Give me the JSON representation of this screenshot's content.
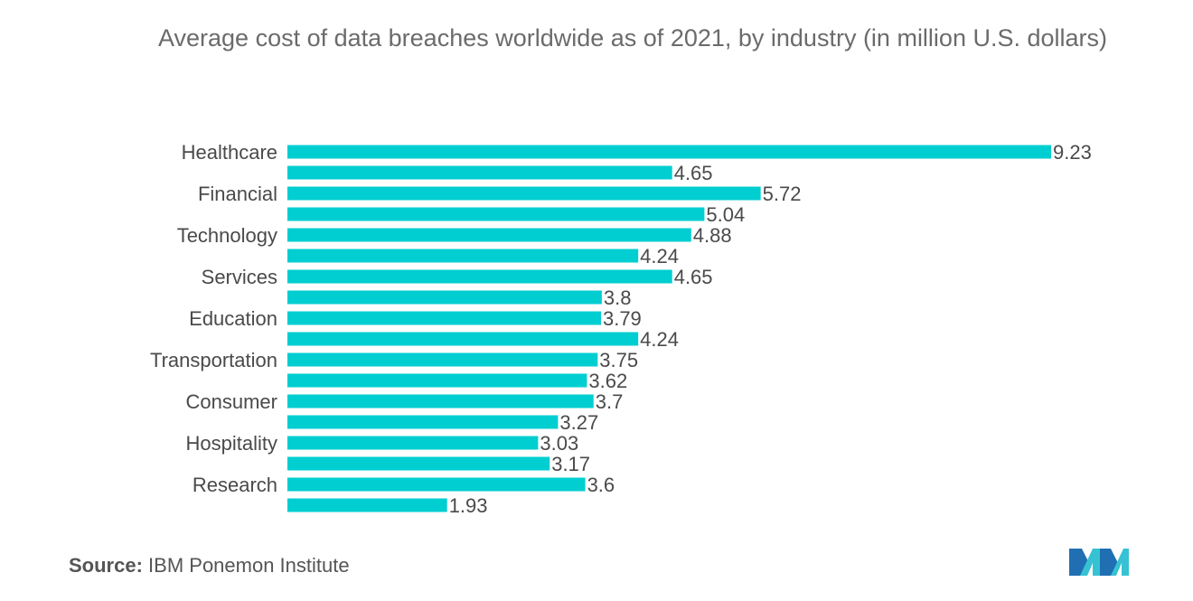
{
  "chart_data": {
    "type": "bar",
    "orientation": "horizontal",
    "title": "Average cost of data breaches worldwide as of 2021, by industry (in million U.S. dollars)",
    "categories": [
      "Healthcare",
      "",
      "Financial",
      "",
      "Technology",
      "",
      "Services",
      "",
      "Education",
      "",
      "Transportation",
      "",
      "Consumer",
      "",
      "Hospitality",
      "",
      "Research",
      ""
    ],
    "values": [
      9.23,
      4.65,
      5.72,
      5.04,
      4.88,
      4.24,
      4.65,
      3.8,
      3.79,
      4.24,
      3.75,
      3.62,
      3.7,
      3.27,
      3.03,
      3.17,
      3.6,
      1.93
    ],
    "value_labels": [
      "9.23",
      "4.65",
      "5.72",
      "5.04",
      "4.88",
      "4.24",
      "4.65",
      "3.8",
      "3.79",
      "4.24",
      "3.75",
      "3.62",
      "3.7",
      "3.27",
      "3.03",
      "3.17",
      "3.6",
      "1.93"
    ],
    "xlim": [
      0,
      9.23
    ],
    "bar_color": "#00CED1",
    "grid": false,
    "xlabel": "",
    "ylabel": ""
  },
  "source": {
    "label": "Source:",
    "text": "IBM Ponemon Institute"
  },
  "logo": {
    "icon": "mordor-intelligence-logo-icon",
    "colors": [
      "#1f6fb2",
      "#36c2d3"
    ]
  }
}
